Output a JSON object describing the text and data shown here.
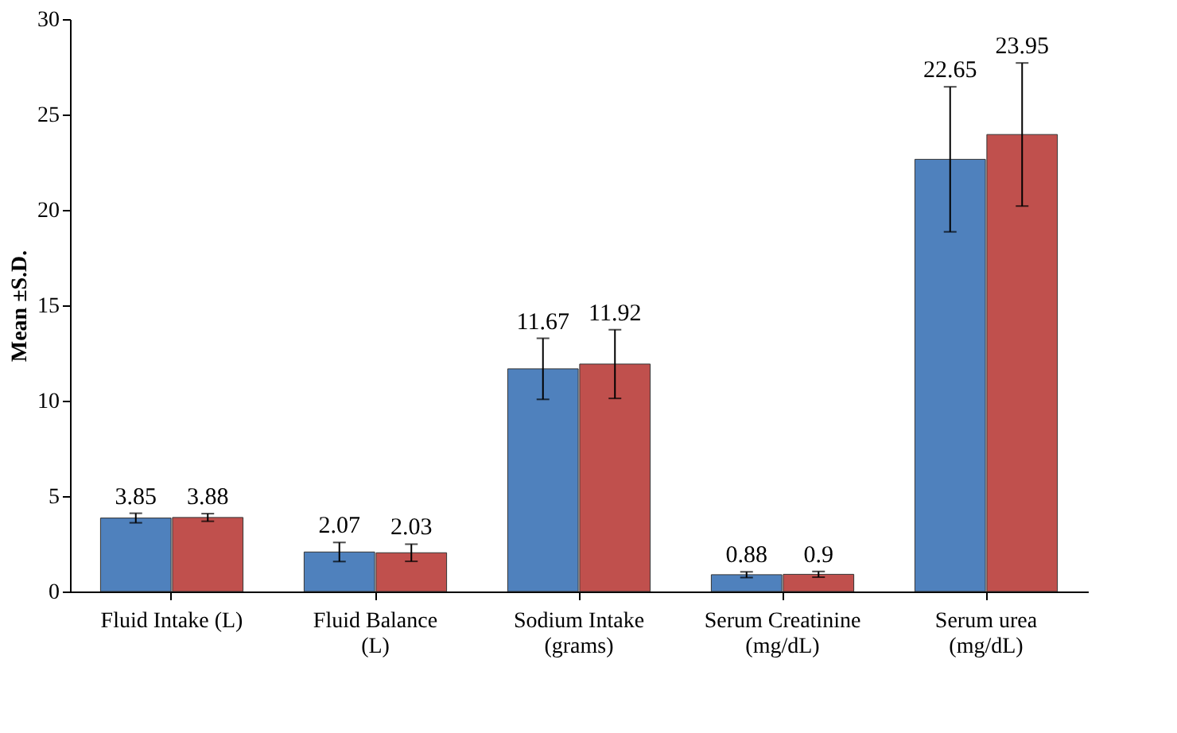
{
  "chart_data": {
    "type": "bar",
    "ylabel": "Mean ±S.D.",
    "categories": [
      "Fluid Intake (L)",
      "Fluid Balance (L)",
      "Sodium Intake (grams)",
      "Serum Creatinine (mg/dL)",
      "Serum urea (mg/dL)"
    ],
    "series": [
      {
        "color": "#4f81bd",
        "values": [
          3.85,
          2.07,
          11.67,
          0.88,
          22.65
        ],
        "errors": [
          0.25,
          0.5,
          1.6,
          0.15,
          3.8
        ]
      },
      {
        "color": "#c0504d",
        "values": [
          3.88,
          2.03,
          11.92,
          0.9,
          23.95
        ],
        "errors": [
          0.2,
          0.45,
          1.8,
          0.15,
          3.75
        ]
      }
    ],
    "ylim": [
      0,
      30
    ],
    "yticks": [
      0,
      5,
      10,
      15,
      20,
      25,
      30
    ],
    "data_labels": true,
    "grid": false,
    "legend": false
  }
}
